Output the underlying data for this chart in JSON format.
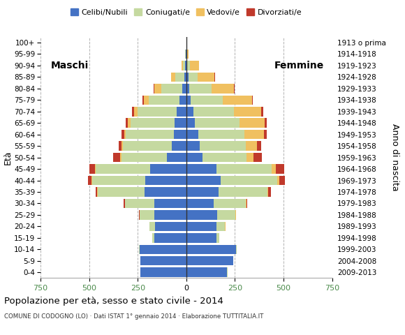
{
  "age_groups": [
    "0-4",
    "5-9",
    "10-14",
    "15-19",
    "20-24",
    "25-29",
    "30-34",
    "35-39",
    "40-44",
    "45-49",
    "50-54",
    "55-59",
    "60-64",
    "65-69",
    "70-74",
    "75-79",
    "80-84",
    "85-89",
    "90-94",
    "95-99",
    "100+"
  ],
  "birth_years": [
    "2009-2013",
    "2004-2008",
    "1999-2003",
    "1994-1998",
    "1989-1993",
    "1984-1988",
    "1979-1983",
    "1974-1978",
    "1969-1973",
    "1964-1968",
    "1959-1963",
    "1954-1958",
    "1949-1953",
    "1944-1948",
    "1939-1943",
    "1934-1938",
    "1929-1933",
    "1924-1928",
    "1919-1923",
    "1914-1918",
    "1913 o prima"
  ],
  "males_celibe": [
    235,
    235,
    240,
    165,
    160,
    165,
    165,
    215,
    210,
    185,
    100,
    75,
    65,
    60,
    50,
    35,
    20,
    10,
    5,
    2,
    0
  ],
  "males_coniugato": [
    1,
    2,
    5,
    10,
    30,
    75,
    150,
    240,
    275,
    280,
    235,
    250,
    245,
    225,
    200,
    160,
    110,
    45,
    12,
    3,
    0
  ],
  "males_vedovo": [
    0,
    0,
    0,
    0,
    0,
    1,
    2,
    3,
    4,
    5,
    5,
    8,
    10,
    15,
    18,
    25,
    35,
    22,
    8,
    1,
    0
  ],
  "males_divorziato": [
    0,
    0,
    0,
    0,
    1,
    2,
    5,
    10,
    15,
    30,
    35,
    13,
    12,
    10,
    10,
    5,
    3,
    2,
    0,
    0,
    0
  ],
  "females_nubile": [
    210,
    240,
    255,
    155,
    155,
    160,
    140,
    165,
    178,
    155,
    85,
    70,
    60,
    45,
    35,
    22,
    15,
    10,
    5,
    2,
    1
  ],
  "females_coniugata": [
    1,
    3,
    5,
    15,
    45,
    92,
    165,
    252,
    290,
    285,
    225,
    235,
    240,
    228,
    210,
    165,
    115,
    48,
    15,
    3,
    0
  ],
  "females_vedova": [
    0,
    0,
    0,
    0,
    1,
    2,
    3,
    5,
    10,
    20,
    35,
    60,
    98,
    130,
    140,
    150,
    115,
    88,
    45,
    8,
    2
  ],
  "females_divorziata": [
    0,
    0,
    0,
    0,
    1,
    2,
    5,
    12,
    28,
    42,
    45,
    20,
    15,
    12,
    10,
    5,
    4,
    2,
    0,
    0,
    0
  ],
  "color_celibe": "#4472c4",
  "color_coniugato": "#c5d9a0",
  "color_vedovo": "#f0c060",
  "color_divorziato": "#c0392b",
  "xlim": 750,
  "title": "Popolazione per età, sesso e stato civile - 2014",
  "subtitle": "COMUNE DI CODOGNO (LO) · Dati ISTAT 1° gennaio 2014 · Elaborazione TUTTITALIA.IT",
  "legend_labels": [
    "Celibi/Nubili",
    "Coniugati/e",
    "Vedovi/e",
    "Divorziati/e"
  ],
  "label_maschi": "Maschi",
  "label_femmine": "Femmine",
  "ylabel_left": "Età",
  "ylabel_right": "Anno di nascita",
  "xtick_labels": [
    "750",
    "500",
    "250",
    "0",
    "250",
    "500",
    "750"
  ],
  "xtick_vals": [
    -750,
    -500,
    -250,
    0,
    250,
    500,
    750
  ],
  "xtick_color": "#4a8a4a",
  "bg_color": "#ffffff",
  "grid_color": "#aaaaaa"
}
